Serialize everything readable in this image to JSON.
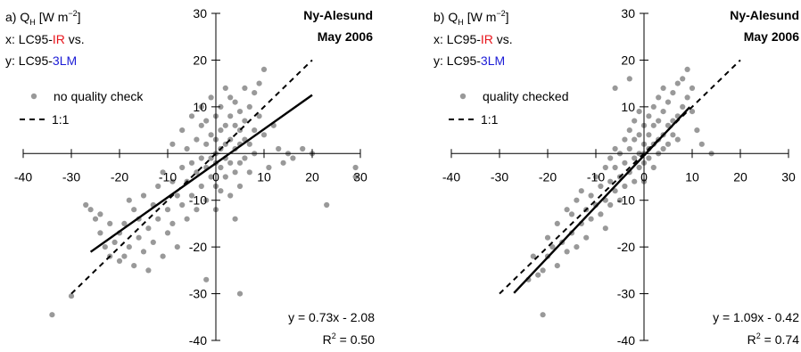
{
  "panels": [
    {
      "id": "a",
      "header": {
        "quantity_prefix": "a) Q",
        "quantity_sub": "H",
        "quantity_units": "[W m",
        "quantity_exp": "−2",
        "quantity_close": "]",
        "x_prefix": "x: LC95-",
        "x_method": "IR",
        "x_suffix": " vs.",
        "y_prefix": "y: LC95-",
        "y_method": "3LM"
      },
      "site": "Ny-Alesund",
      "period": "May 2006",
      "legend": {
        "points": "no quality check",
        "line": "1:1"
      },
      "equation": "y = 0.73x - 2.08",
      "r2_label": "R",
      "r2_exp": "2",
      "r2_value": " = 0.50"
    },
    {
      "id": "b",
      "header": {
        "quantity_prefix": "b) Q",
        "quantity_sub": "H",
        "quantity_units": "[W m",
        "quantity_exp": "−2",
        "quantity_close": "]",
        "x_prefix": "x: LC95-",
        "x_method": "IR",
        "x_suffix": " vs.",
        "y_prefix": "y: LC95-",
        "y_method": "3LM"
      },
      "site": "Ny-Alesund",
      "period": "May 2006",
      "legend": {
        "points": "quality checked",
        "line": "1:1"
      },
      "equation": "y = 1.09x - 0.42",
      "r2_label": "R",
      "r2_exp": "2",
      "r2_value": " = 0.74"
    }
  ],
  "colors": {
    "points": "#999999",
    "fit": "#000000",
    "one_to_one": "#000000",
    "method_ir": "#e8141b",
    "method_3lm": "#1c1cd6",
    "axis": "#000000"
  },
  "chart_data": [
    {
      "type": "scatter",
      "title": "",
      "xlim": [
        -40,
        30
      ],
      "ylim": [
        -40,
        30
      ],
      "x_ticks": [
        -40,
        -30,
        -20,
        -10,
        0,
        10,
        20,
        30
      ],
      "y_ticks": [
        -40,
        -30,
        -20,
        -10,
        0,
        10,
        20,
        30
      ],
      "grid": false,
      "legend_position": "upper-left",
      "series": [
        {
          "name": "no quality check",
          "kind": "points",
          "points": [
            [
              -34,
              -34.5
            ],
            [
              -30,
              -30.5
            ],
            [
              -27,
              -11
            ],
            [
              -26,
              -12
            ],
            [
              -25,
              -14
            ],
            [
              -24,
              -13
            ],
            [
              -24,
              -17
            ],
            [
              -23,
              -20
            ],
            [
              -22,
              -22
            ],
            [
              -22,
              -15
            ],
            [
              -21,
              -19
            ],
            [
              -20,
              -23
            ],
            [
              -20,
              -17
            ],
            [
              -19,
              -15
            ],
            [
              -19,
              -22
            ],
            [
              -18,
              -10
            ],
            [
              -18,
              -20
            ],
            [
              -17,
              -12
            ],
            [
              -17,
              -24
            ],
            [
              -16,
              -18
            ],
            [
              -16,
              -14
            ],
            [
              -15,
              -21
            ],
            [
              -15,
              -9
            ],
            [
              -14,
              -16
            ],
            [
              -14,
              -25
            ],
            [
              -13,
              -11
            ],
            [
              -13,
              -19
            ],
            [
              -12,
              -7
            ],
            [
              -12,
              -14
            ],
            [
              -11,
              -22
            ],
            [
              -11,
              -4
            ],
            [
              -10,
              -12
            ],
            [
              -10,
              -17
            ],
            [
              -9,
              -6
            ],
            [
              -9,
              -15
            ],
            [
              -9,
              2
            ],
            [
              -8,
              -9
            ],
            [
              -8,
              -20
            ],
            [
              -7,
              -3
            ],
            [
              -7,
              -11
            ],
            [
              -7,
              5
            ],
            [
              -6,
              -6
            ],
            [
              -6,
              -14
            ],
            [
              -6,
              1
            ],
            [
              -5,
              -2
            ],
            [
              -5,
              -9
            ],
            [
              -5,
              8
            ],
            [
              -4,
              -4
            ],
            [
              -4,
              3
            ],
            [
              -4,
              -12
            ],
            [
              -3,
              -1
            ],
            [
              -3,
              6
            ],
            [
              -3,
              -7
            ],
            [
              -3,
              10
            ],
            [
              -2,
              -3
            ],
            [
              -2,
              2
            ],
            [
              -2,
              -10
            ],
            [
              -2,
              7
            ],
            [
              -1,
              -1
            ],
            [
              -1,
              4
            ],
            [
              -1,
              -5
            ],
            [
              -1,
              12
            ],
            [
              0,
              0
            ],
            [
              0,
              -2
            ],
            [
              0,
              3
            ],
            [
              0,
              -7
            ],
            [
              0,
              8
            ],
            [
              0,
              -12
            ],
            [
              1,
              1
            ],
            [
              1,
              -3
            ],
            [
              1,
              5
            ],
            [
              1,
              -8
            ],
            [
              1,
              10
            ],
            [
              2,
              2
            ],
            [
              2,
              -1
            ],
            [
              2,
              6
            ],
            [
              2,
              -5
            ],
            [
              2,
              14
            ],
            [
              3,
              3
            ],
            [
              3,
              -2
            ],
            [
              3,
              8
            ],
            [
              3,
              -9
            ],
            [
              3,
              12
            ],
            [
              4,
              1
            ],
            [
              4,
              -4
            ],
            [
              4,
              6
            ],
            [
              4,
              11
            ],
            [
              4,
              -14
            ],
            [
              5,
              2
            ],
            [
              5,
              -2
            ],
            [
              5,
              9
            ],
            [
              5,
              5
            ],
            [
              5,
              -7
            ],
            [
              6,
              3
            ],
            [
              6,
              -1
            ],
            [
              6,
              7
            ],
            [
              6,
              14
            ],
            [
              7,
              2
            ],
            [
              7,
              10
            ],
            [
              7,
              -4
            ],
            [
              8,
              5
            ],
            [
              8,
              13
            ],
            [
              8,
              0
            ],
            [
              9,
              8
            ],
            [
              9,
              15
            ],
            [
              10,
              18
            ],
            [
              10,
              4
            ],
            [
              11,
              -3
            ],
            [
              12,
              6
            ],
            [
              13,
              1
            ],
            [
              14,
              -2
            ],
            [
              15,
              0
            ],
            [
              16,
              -1
            ],
            [
              18,
              1
            ],
            [
              20,
              0
            ],
            [
              23,
              -11
            ],
            [
              29,
              -3
            ],
            [
              29,
              -5
            ],
            [
              -2,
              -27
            ],
            [
              5,
              -30
            ]
          ]
        },
        {
          "name": "",
          "kind": "fit_line",
          "x": [
            -26,
            20
          ],
          "y": [
            -21.06,
            12.52
          ]
        },
        {
          "name": "1:1",
          "kind": "reference_line",
          "x": [
            -30,
            20
          ],
          "y": [
            -30,
            20
          ]
        }
      ]
    },
    {
      "type": "scatter",
      "title": "",
      "xlim": [
        -40,
        30
      ],
      "ylim": [
        -40,
        30
      ],
      "x_ticks": [
        -40,
        -30,
        -20,
        -10,
        0,
        10,
        20,
        30
      ],
      "y_ticks": [
        -40,
        -30,
        -20,
        -10,
        0,
        10,
        20,
        30
      ],
      "grid": false,
      "legend_position": "upper-left",
      "series": [
        {
          "name": "quality checked",
          "kind": "points",
          "points": [
            [
              -21,
              -34.5
            ],
            [
              -24,
              -27
            ],
            [
              -22,
              -26
            ],
            [
              -23,
              -22
            ],
            [
              -21,
              -25
            ],
            [
              -20,
              -22
            ],
            [
              -20,
              -18
            ],
            [
              -19,
              -20
            ],
            [
              -18,
              -24
            ],
            [
              -18,
              -15
            ],
            [
              -17,
              -19
            ],
            [
              -16,
              -21
            ],
            [
              -16,
              -12
            ],
            [
              -15,
              -17
            ],
            [
              -15,
              -13
            ],
            [
              -14,
              -20
            ],
            [
              -14,
              -10
            ],
            [
              -13,
              -15
            ],
            [
              -13,
              -8
            ],
            [
              -12,
              -12
            ],
            [
              -12,
              -18
            ],
            [
              -11,
              -9
            ],
            [
              -11,
              -14
            ],
            [
              -10,
              -11
            ],
            [
              -10,
              -5
            ],
            [
              -9,
              -13
            ],
            [
              -9,
              -7
            ],
            [
              -8,
              -10
            ],
            [
              -8,
              -3
            ],
            [
              -8,
              -16
            ],
            [
              -7,
              -6
            ],
            [
              -7,
              -1
            ],
            [
              -7,
              -11
            ],
            [
              -6,
              -8
            ],
            [
              -6,
              -3
            ],
            [
              -6,
              1
            ],
            [
              -5,
              -5
            ],
            [
              -5,
              0
            ],
            [
              -5,
              -10
            ],
            [
              -4,
              -2
            ],
            [
              -4,
              3
            ],
            [
              -4,
              -7
            ],
            [
              -3,
              -4
            ],
            [
              -3,
              1
            ],
            [
              -3,
              5
            ],
            [
              -2,
              -1
            ],
            [
              -2,
              -6
            ],
            [
              -2,
              3
            ],
            [
              -2,
              7
            ],
            [
              -1,
              0
            ],
            [
              -1,
              -3
            ],
            [
              -1,
              4
            ],
            [
              -1,
              9
            ],
            [
              0,
              0
            ],
            [
              0,
              2
            ],
            [
              0,
              -2
            ],
            [
              0,
              6
            ],
            [
              0,
              -6
            ],
            [
              1,
              1
            ],
            [
              1,
              4
            ],
            [
              1,
              -1
            ],
            [
              1,
              8
            ],
            [
              2,
              2
            ],
            [
              2,
              6
            ],
            [
              2,
              -3
            ],
            [
              2,
              10
            ],
            [
              3,
              3
            ],
            [
              3,
              7
            ],
            [
              3,
              0
            ],
            [
              3,
              12
            ],
            [
              4,
              4
            ],
            [
              4,
              9
            ],
            [
              4,
              1
            ],
            [
              4,
              14
            ],
            [
              5,
              6
            ],
            [
              5,
              11
            ],
            [
              5,
              2
            ],
            [
              6,
              7
            ],
            [
              6,
              13
            ],
            [
              6,
              4
            ],
            [
              7,
              8
            ],
            [
              7,
              15
            ],
            [
              7,
              3
            ],
            [
              8,
              10
            ],
            [
              8,
              16
            ],
            [
              9,
              12
            ],
            [
              9,
              18
            ],
            [
              10,
              9
            ],
            [
              10,
              14
            ],
            [
              11,
              5
            ],
            [
              12,
              2
            ],
            [
              14,
              0
            ],
            [
              -6,
              14
            ],
            [
              -3,
              16
            ]
          ]
        },
        {
          "name": "",
          "kind": "fit_line",
          "x": [
            -27,
            9.5
          ],
          "y": [
            -29.85,
            9.935
          ]
        },
        {
          "name": "1:1",
          "kind": "reference_line",
          "x": [
            -30,
            20
          ],
          "y": [
            -30,
            20
          ]
        }
      ]
    }
  ]
}
